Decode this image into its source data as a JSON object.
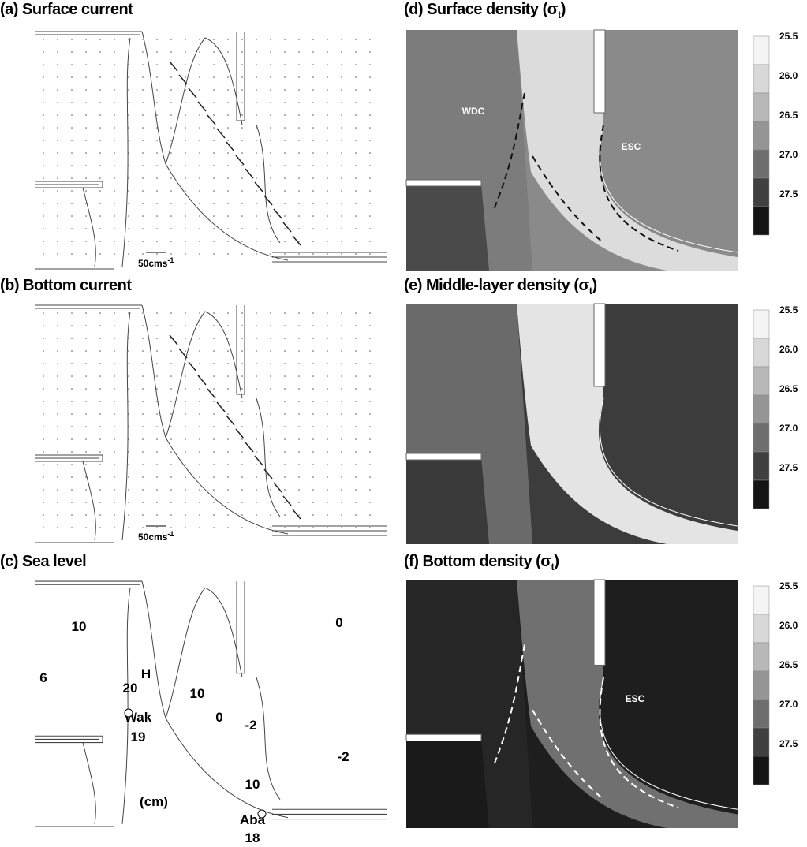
{
  "panels": [
    {
      "title": "(a) Surface current",
      "scale_label": "50cms",
      "scale_exponent": "-1"
    },
    {
      "title": "(b) Bottom current",
      "scale_label": "50cms",
      "scale_exponent": "-1"
    },
    {
      "title": "(c) Sea level",
      "labels": [
        "10",
        "6",
        "20",
        "H",
        "10",
        "0",
        "-2",
        "-2",
        "0",
        "10",
        "(cm)",
        "Wak",
        "19",
        "Aba",
        "18"
      ]
    },
    {
      "title": "(d) Surface density (σ",
      "title_subscript": "t",
      "title_end": ")",
      "colorbar_ticks": [
        "25.5",
        "26.0",
        "26.5",
        "27.0",
        "27.5"
      ],
      "labels": [
        "WDC",
        "ESC"
      ]
    },
    {
      "title": "(e) Middle-layer density (σ",
      "title_subscript": "t",
      "title_end": ")",
      "colorbar_ticks": [
        "25.5",
        "26.0",
        "26.5",
        "27.0",
        "27.5"
      ]
    },
    {
      "title": "(f) Bottom density (σ",
      "title_subscript": "t",
      "title_end": ")",
      "colorbar_ticks": [
        "25.5",
        "26.0",
        "26.5",
        "27.0",
        "27.5"
      ],
      "labels": [
        "ESC"
      ]
    }
  ]
}
